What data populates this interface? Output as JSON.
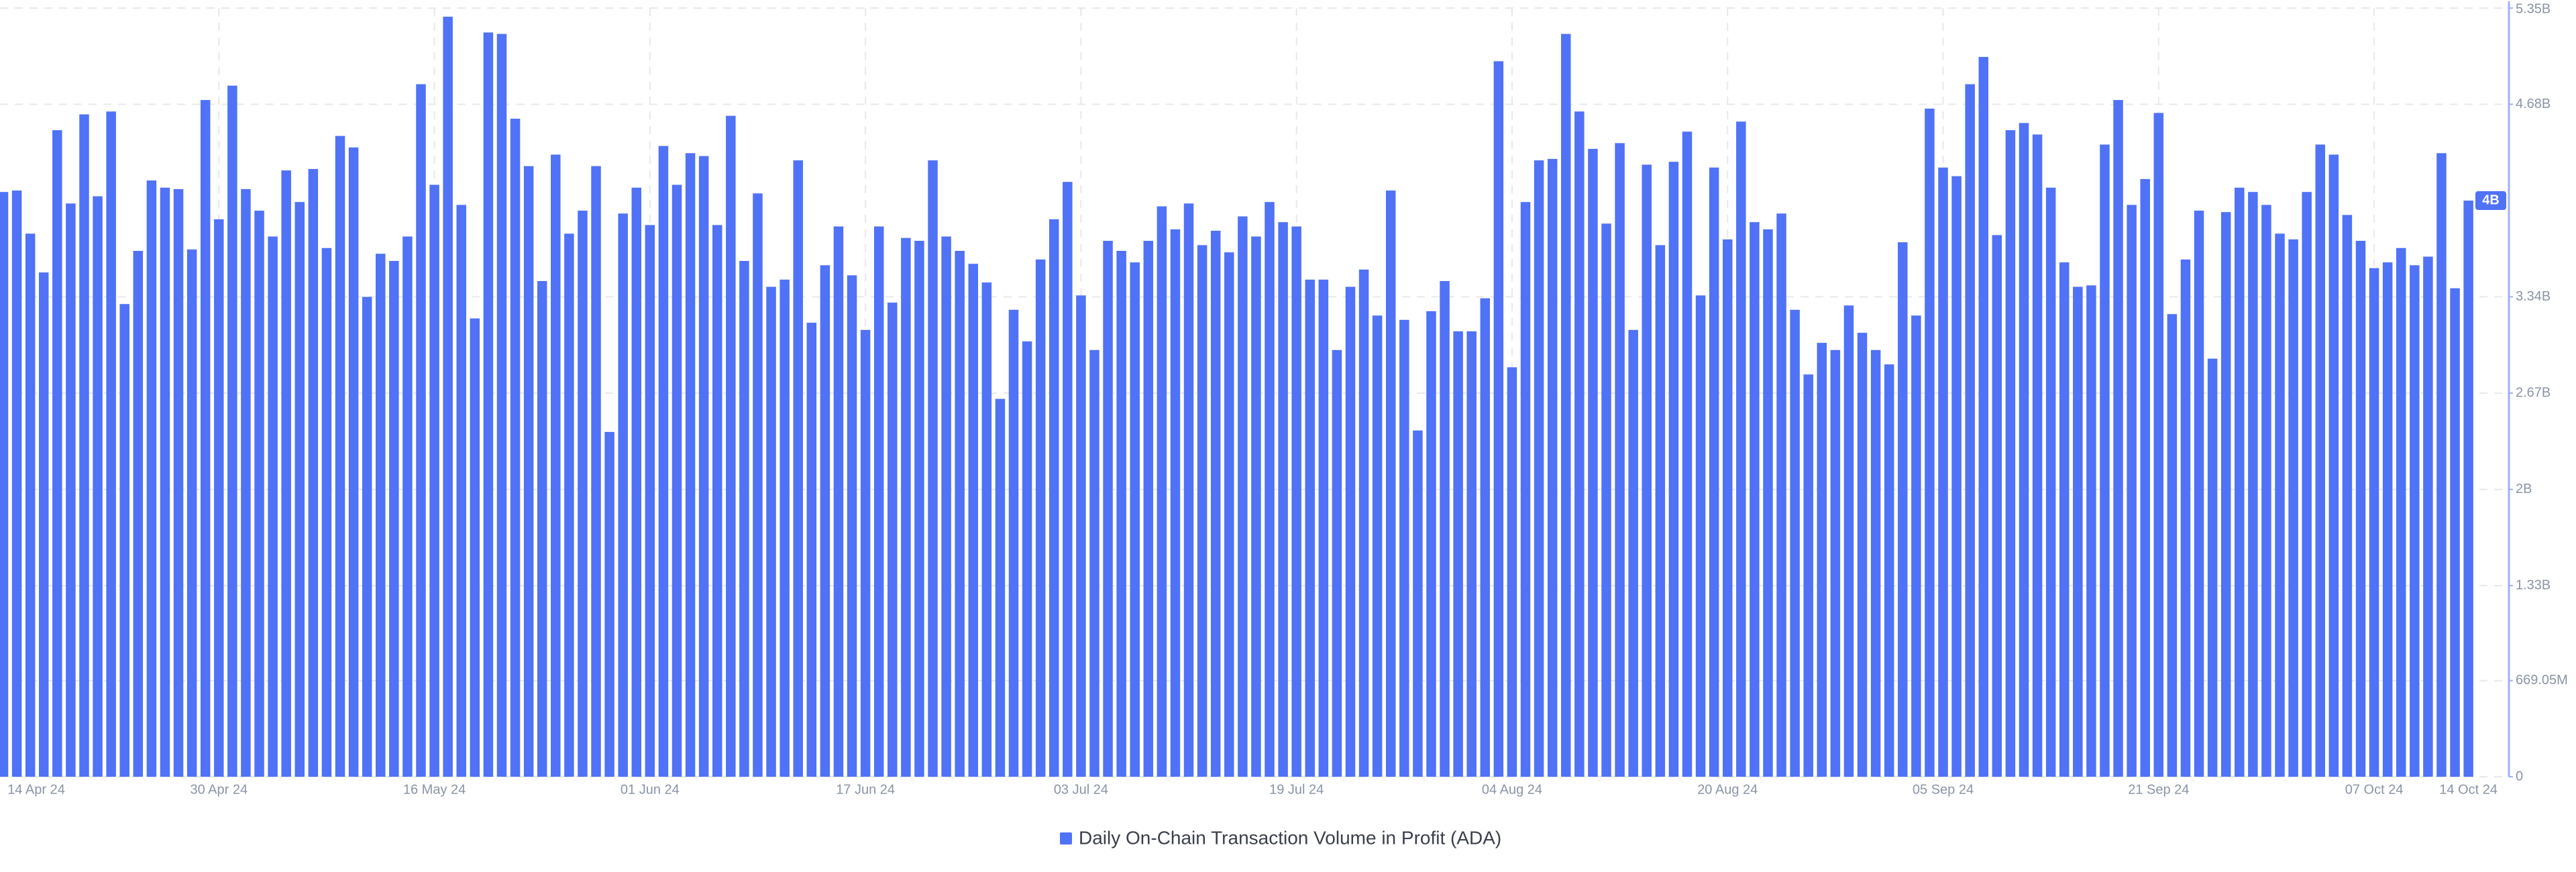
{
  "chart_data": {
    "type": "bar",
    "categories": [
      "14 Apr 24",
      null,
      null,
      null,
      null,
      null,
      null,
      null,
      null,
      null,
      null,
      null,
      null,
      null,
      null,
      null,
      "30 Apr 24",
      null,
      null,
      null,
      null,
      null,
      null,
      null,
      null,
      null,
      null,
      null,
      null,
      null,
      null,
      null,
      "16 May 24",
      null,
      null,
      null,
      null,
      null,
      null,
      null,
      null,
      null,
      null,
      null,
      null,
      null,
      null,
      null,
      "01 Jun 24",
      null,
      null,
      null,
      null,
      null,
      null,
      null,
      null,
      null,
      null,
      null,
      null,
      null,
      null,
      null,
      "17 Jun 24",
      null,
      null,
      null,
      null,
      null,
      null,
      null,
      null,
      null,
      null,
      null,
      null,
      null,
      null,
      null,
      "03 Jul 24",
      null,
      null,
      null,
      null,
      null,
      null,
      null,
      null,
      null,
      null,
      null,
      null,
      null,
      null,
      null,
      "19 Jul 24",
      null,
      null,
      null,
      null,
      null,
      null,
      null,
      null,
      null,
      null,
      null,
      null,
      null,
      null,
      null,
      "04 Aug 24",
      null,
      null,
      null,
      null,
      null,
      null,
      null,
      null,
      null,
      null,
      null,
      null,
      null,
      null,
      null,
      "20 Aug 24",
      null,
      null,
      null,
      null,
      null,
      null,
      null,
      null,
      null,
      null,
      null,
      null,
      null,
      null,
      null,
      "05 Sep 24",
      null,
      null,
      null,
      null,
      null,
      null,
      null,
      null,
      null,
      null,
      null,
      null,
      null,
      null,
      null,
      "21 Sep 24",
      null,
      null,
      null,
      null,
      null,
      null,
      null,
      null,
      null,
      null,
      null,
      null,
      null,
      null,
      null,
      "07 Oct 24",
      null,
      null,
      null,
      null,
      null,
      null,
      "14 Oct 24"
    ],
    "series": [
      {
        "name": "Daily On-Chain Transaction Volume in Profit (ADA)",
        "color": "#5072f7",
        "values": [
          4070000000.0,
          4080000000.0,
          3780000000.0,
          3510000000.0,
          4500000000.0,
          3990000000.0,
          4610000000.0,
          4040000000.0,
          4630000000.0,
          3290000000.0,
          3660000000.0,
          4150000000.0,
          4100000000.0,
          4090000000.0,
          3670000000.0,
          4710000000.0,
          3880000000.0,
          4810000000.0,
          4090000000.0,
          3940000000.0,
          3760000000.0,
          4220000000.0,
          4000000000.0,
          4230000000.0,
          3680000000.0,
          4460000000.0,
          4380000000.0,
          3340000000.0,
          3640000000.0,
          3590000000.0,
          3760000000.0,
          4820000000.0,
          4120000000.0,
          5290000000.0,
          3980000000.0,
          3190000000.0,
          5180000000.0,
          5170000000.0,
          4580000000.0,
          4250000000.0,
          3450000000.0,
          4330000000.0,
          3780000000.0,
          3940000000.0,
          4250000000.0,
          2400000000.0,
          3920000000.0,
          4100000000.0,
          3840000000.0,
          4390000000.0,
          4120000000.0,
          4340000000.0,
          4320000000.0,
          3840000000.0,
          4600000000.0,
          3590000000.0,
          4060000000.0,
          3410000000.0,
          3460000000.0,
          4290000000.0,
          3160000000.0,
          3560000000.0,
          3830000000.0,
          3490000000.0,
          3110000000.0,
          3830000000.0,
          3300000000.0,
          3750000000.0,
          3730000000.0,
          4290000000.0,
          3760000000.0,
          3660000000.0,
          3570000000.0,
          3440000000.0,
          2630000000.0,
          3250000000.0,
          3030000000.0,
          3600000000.0,
          3880000000.0,
          4140000000.0,
          3350000000.0,
          2970000000.0,
          3730000000.0,
          3660000000.0,
          3580000000.0,
          3730000000.0,
          3970000000.0,
          3810000000.0,
          3990000000.0,
          3700000000.0,
          3800000000.0,
          3650000000.0,
          3900000000.0,
          3760000000.0,
          4000000000.0,
          3860000000.0,
          3830000000.0,
          3460000000.0,
          3460000000.0,
          2970000000.0,
          3410000000.0,
          3530000000.0,
          3210000000.0,
          4080000000.0,
          3180000000.0,
          2410000000.0,
          3240000000.0,
          3450000000.0,
          3100000000.0,
          3100000000.0,
          3330000000.0,
          4980000000.0,
          2850000000.0,
          4000000000.0,
          4290000000.0,
          4300000000.0,
          5170000000.0,
          4630000000.0,
          4370000000.0,
          3850000000.0,
          4410000000.0,
          3110000000.0,
          4260000000.0,
          3700000000.0,
          4280000000.0,
          4490000000.0,
          3350000000.0,
          4240000000.0,
          3740000000.0,
          4560000000.0,
          3860000000.0,
          3810000000.0,
          3920000000.0,
          3250000000.0,
          2800000000.0,
          3020000000.0,
          2970000000.0,
          3280000000.0,
          3090000000.0,
          2970000000.0,
          2870000000.0,
          3720000000.0,
          3210000000.0,
          4650000000.0,
          4240000000.0,
          4180000000.0,
          4820000000.0,
          5010000000.0,
          3770000000.0,
          4500000000.0,
          4550000000.0,
          4470000000.0,
          4100000000.0,
          3580000000.0,
          3410000000.0,
          3420000000.0,
          4400000000.0,
          4710000000.0,
          3980000000.0,
          4160000000.0,
          4620000000.0,
          3220000000.0,
          3600000000.0,
          3940000000.0,
          2910000000.0,
          3930000000.0,
          4100000000.0,
          4070000000.0,
          3980000000.0,
          3780000000.0,
          3740000000.0,
          4070000000.0,
          4400000000.0,
          4330000000.0,
          3910000000.0,
          3730000000.0,
          3540000000.0,
          3580000000.0,
          3680000000.0,
          3560000000.0,
          3620000000.0,
          4340000000.0,
          3400000000.0,
          4010000000.0
        ],
        "value_labels": [
          null,
          null,
          null,
          null,
          null,
          null,
          null,
          null,
          null,
          null,
          null,
          null,
          null,
          null,
          null,
          null,
          null,
          null,
          null,
          null,
          null,
          null,
          null,
          null,
          null,
          null,
          null,
          null,
          null,
          null,
          null,
          null,
          null,
          null,
          null,
          null,
          null,
          null,
          null,
          null,
          null,
          null,
          null,
          null,
          null,
          null,
          null,
          null,
          null,
          null,
          null,
          null,
          null,
          null,
          null,
          null,
          null,
          null,
          null,
          null,
          null,
          null,
          null,
          null,
          null,
          null,
          null,
          null,
          null,
          null,
          null,
          null,
          null,
          null,
          null,
          null,
          null,
          null,
          null,
          null,
          null,
          null,
          null,
          null,
          null,
          null,
          null,
          null,
          null,
          null,
          null,
          null,
          null,
          null,
          null,
          null,
          null,
          null,
          null,
          null,
          null,
          null,
          null,
          null,
          null,
          null,
          null,
          null,
          null,
          null,
          null,
          null,
          null,
          null,
          null,
          null,
          null,
          null,
          null,
          null,
          null,
          null,
          null,
          null,
          null,
          null,
          null,
          null,
          null,
          null,
          null,
          null,
          null,
          null,
          null,
          null,
          null,
          null,
          null,
          null,
          null,
          null,
          null,
          null,
          null,
          null,
          null,
          null,
          null,
          null,
          null,
          null,
          null,
          null,
          null,
          null,
          null,
          null,
          null,
          null,
          null,
          null,
          null,
          null,
          null,
          null,
          null,
          null,
          null,
          null,
          null,
          null,
          null,
          null,
          null,
          null,
          null,
          null,
          null,
          null,
          null,
          null,
          null,
          "4B"
        ]
      }
    ],
    "ylim": [
      0,
      5350000000
    ],
    "yticks": [
      0,
      {
        "value": 669050000,
        "label": "669.05M"
      },
      {
        "value": 1330000000,
        "label": "1.33B"
      },
      {
        "value": 2000000000,
        "label": "2B"
      },
      {
        "value": 2670000000,
        "label": "2.67B"
      },
      {
        "value": 3340000000,
        "label": "3.34B"
      },
      {
        "value": 4680000000,
        "label": "4.68B"
      },
      {
        "value": 5350000000,
        "label": "5.35B"
      }
    ],
    "grid": true
  }
}
